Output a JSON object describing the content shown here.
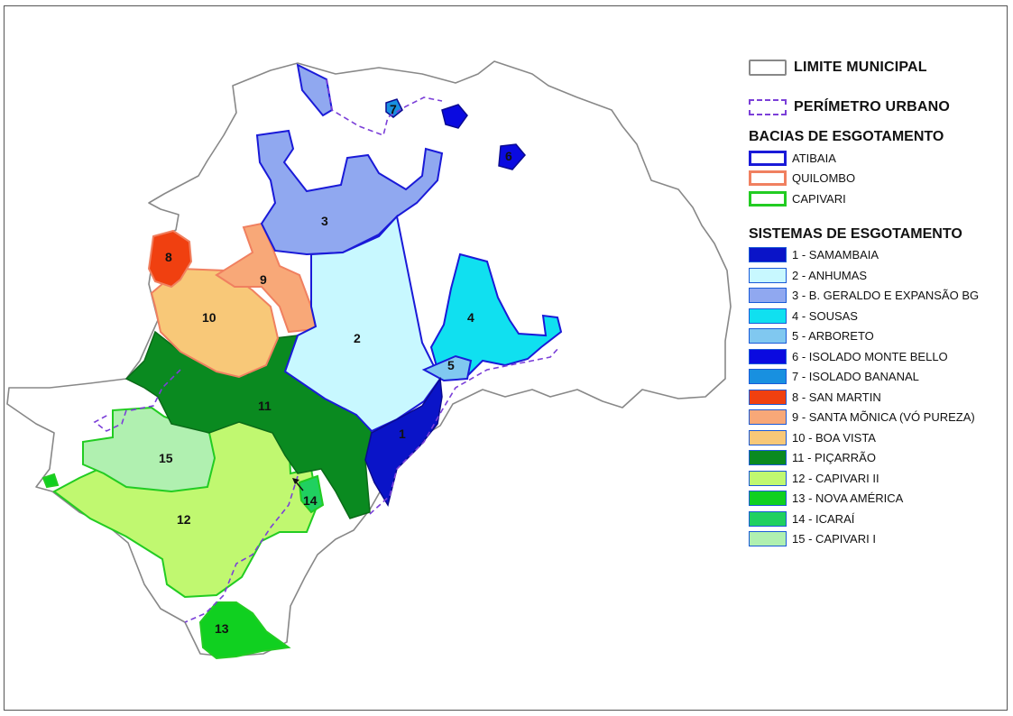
{
  "legend": {
    "limite_label": "LIMITE MUNICIPAL",
    "perimetro_label": "PERÍMETRO URBANO",
    "bacias_title": "BACIAS DE ESGOTAMENTO",
    "bacias": [
      {
        "label": "ATIBAIA",
        "color": "#1a1ad8"
      },
      {
        "label": "QUILOMBO",
        "color": "#f08060"
      },
      {
        "label": "CAPIVARI",
        "color": "#22cc22"
      }
    ],
    "sistemas_title": "SISTEMAS DE ESGOTAMENTO",
    "sistemas": [
      {
        "label": "1 - SAMAMBAIA",
        "color": "#0a14c8"
      },
      {
        "label": "2 - ANHUMAS",
        "color": "#c8f8ff"
      },
      {
        "label": "3 - B. GERALDO E EXPANSÃO BG",
        "color": "#90a8f0"
      },
      {
        "label": "4 - SOUSAS",
        "color": "#10e0f0"
      },
      {
        "label": "5 - ARBORETO",
        "color": "#80c8f0"
      },
      {
        "label": "6 - ISOLADO MONTE BELLO",
        "color": "#0a0ae0"
      },
      {
        "label": "7 - ISOLADO BANANAL",
        "color": "#1890e0"
      },
      {
        "label": "8 - SAN MARTIN",
        "color": "#f04010"
      },
      {
        "label": "9 - SANTA MÕNICA (VÓ PUREZA)",
        "color": "#f8a878"
      },
      {
        "label": "10 - BOA VISTA",
        "color": "#f8c878"
      },
      {
        "label": "11 - PIÇARRÃO",
        "color": "#0a8a20"
      },
      {
        "label": "12 - CAPIVARI  II",
        "color": "#c0f870"
      },
      {
        "label": "13 - NOVA AMÉRICA",
        "color": "#10d020"
      },
      {
        "label": "14 - ICARAÍ",
        "color": "#20d060"
      },
      {
        "label": "15 - CAPIVARI  I",
        "color": "#b0f0b0"
      }
    ]
  },
  "zones": [
    {
      "label": "1",
      "color": "#0a14c8"
    },
    {
      "label": "2",
      "color": "#c8f8ff"
    },
    {
      "label": "3",
      "color": "#90a8f0"
    },
    {
      "label": "4",
      "color": "#10e0f0"
    },
    {
      "label": "5",
      "color": "#80c8f0"
    },
    {
      "label": "6",
      "color": "#0a0ae0"
    },
    {
      "label": "7",
      "color": "#1890e0"
    },
    {
      "label": "8",
      "color": "#f04010"
    },
    {
      "label": "9",
      "color": "#f8a878"
    },
    {
      "label": "10",
      "color": "#f8c878"
    },
    {
      "label": "11",
      "color": "#0a8a20"
    },
    {
      "label": "12",
      "color": "#c0f870"
    },
    {
      "label": "13",
      "color": "#10d020"
    },
    {
      "label": "14",
      "color": "#20d060"
    },
    {
      "label": "15",
      "color": "#b0f0b0"
    }
  ],
  "colors": {
    "limite": "#888888",
    "perimetro": "#7b3fd8",
    "atibaia": "#1a1ad8",
    "quilombo": "#f08060",
    "capivari": "#22cc22"
  }
}
